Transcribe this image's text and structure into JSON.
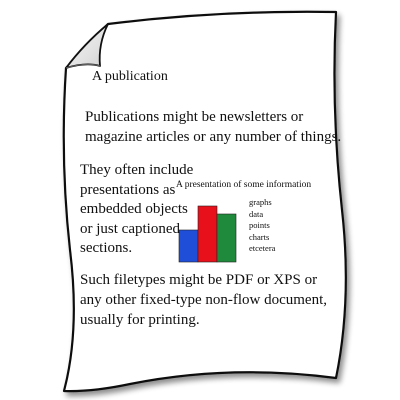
{
  "document": {
    "title": "A publication",
    "paragraph_1": [
      "Publications might be newsletters or",
      "magazine articles or any number of things."
    ],
    "paragraph_2": [
      "They often include",
      "presentations as",
      "embedded objects",
      "or just captioned",
      "sections."
    ],
    "paragraph_3": [
      "Such filetypes might be PDF or XPS or",
      "any other fixed-type non-flow document,",
      "usually for printing."
    ]
  },
  "presentation": {
    "title": "A presentation of some information",
    "legend": [
      "graphs",
      "data",
      "points",
      "charts",
      "etcetera"
    ]
  },
  "chart_data": {
    "type": "bar",
    "title": "A presentation of some information",
    "categories": [
      "",
      "",
      ""
    ],
    "values": [
      2,
      3.5,
      3
    ],
    "colors": [
      "#1f4fd8",
      "#e8101a",
      "#1f8a3c"
    ],
    "ylim": [
      0,
      3.5
    ]
  }
}
